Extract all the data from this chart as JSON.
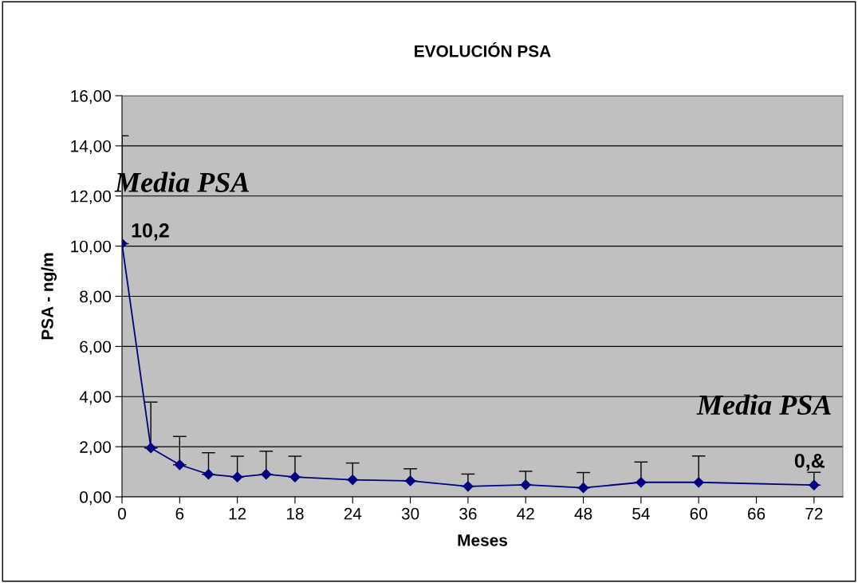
{
  "chart_data": {
    "type": "line",
    "title": "EVOLUCIÓN PSA",
    "xlabel": "Meses",
    "ylabel": "PSA - ng/m",
    "x": [
      0,
      3,
      6,
      9,
      12,
      15,
      18,
      24,
      30,
      36,
      42,
      48,
      54,
      60,
      72
    ],
    "series": [
      {
        "color": "#000080",
        "values": [
          10.1,
          1.95,
          1.28,
          0.9,
          0.79,
          0.9,
          0.79,
          0.68,
          0.64,
          0.42,
          0.48,
          0.36,
          0.58,
          0.58,
          0.47
        ],
        "errors": [
          [
            10.1,
            14.4
          ],
          [
            1.95,
            3.78
          ],
          [
            1.28,
            2.41
          ],
          [
            0.9,
            1.76
          ],
          [
            0.79,
            1.62
          ],
          [
            0.9,
            1.82
          ],
          [
            0.79,
            1.62
          ],
          [
            0.68,
            1.35
          ],
          [
            0.64,
            1.12
          ],
          [
            0.42,
            0.91
          ],
          [
            0.48,
            1.02
          ],
          [
            0.36,
            0.97
          ],
          [
            0.58,
            1.39
          ],
          [
            0.58,
            1.63
          ],
          [
            0.47,
            0.98
          ]
        ]
      }
    ],
    "xlim": [
      0,
      75
    ],
    "xticks": [
      0,
      6,
      12,
      18,
      24,
      30,
      36,
      42,
      48,
      54,
      60,
      66,
      72
    ],
    "ylim": [
      0,
      16
    ],
    "yticks": [
      {
        "value": 0,
        "label": "0,00"
      },
      {
        "value": 2,
        "label": "2,00"
      },
      {
        "value": 4,
        "label": "4,00"
      },
      {
        "value": 6,
        "label": "6,00"
      },
      {
        "value": 8,
        "label": "8,00"
      },
      {
        "value": 10,
        "label": "10,00"
      },
      {
        "value": 12,
        "label": "12,00"
      },
      {
        "value": 14,
        "label": "14,00"
      },
      {
        "value": 16,
        "label": "16,00"
      }
    ],
    "grid": "y",
    "marker": "diamond",
    "line_style": "solid",
    "legend": false,
    "annotations": [
      "Media PSA",
      {
        "text": "10,2",
        "x": 0,
        "y": 10.1
      },
      "Media PSA",
      {
        "text": "0,&",
        "x": 72,
        "y": 0.47
      }
    ]
  }
}
